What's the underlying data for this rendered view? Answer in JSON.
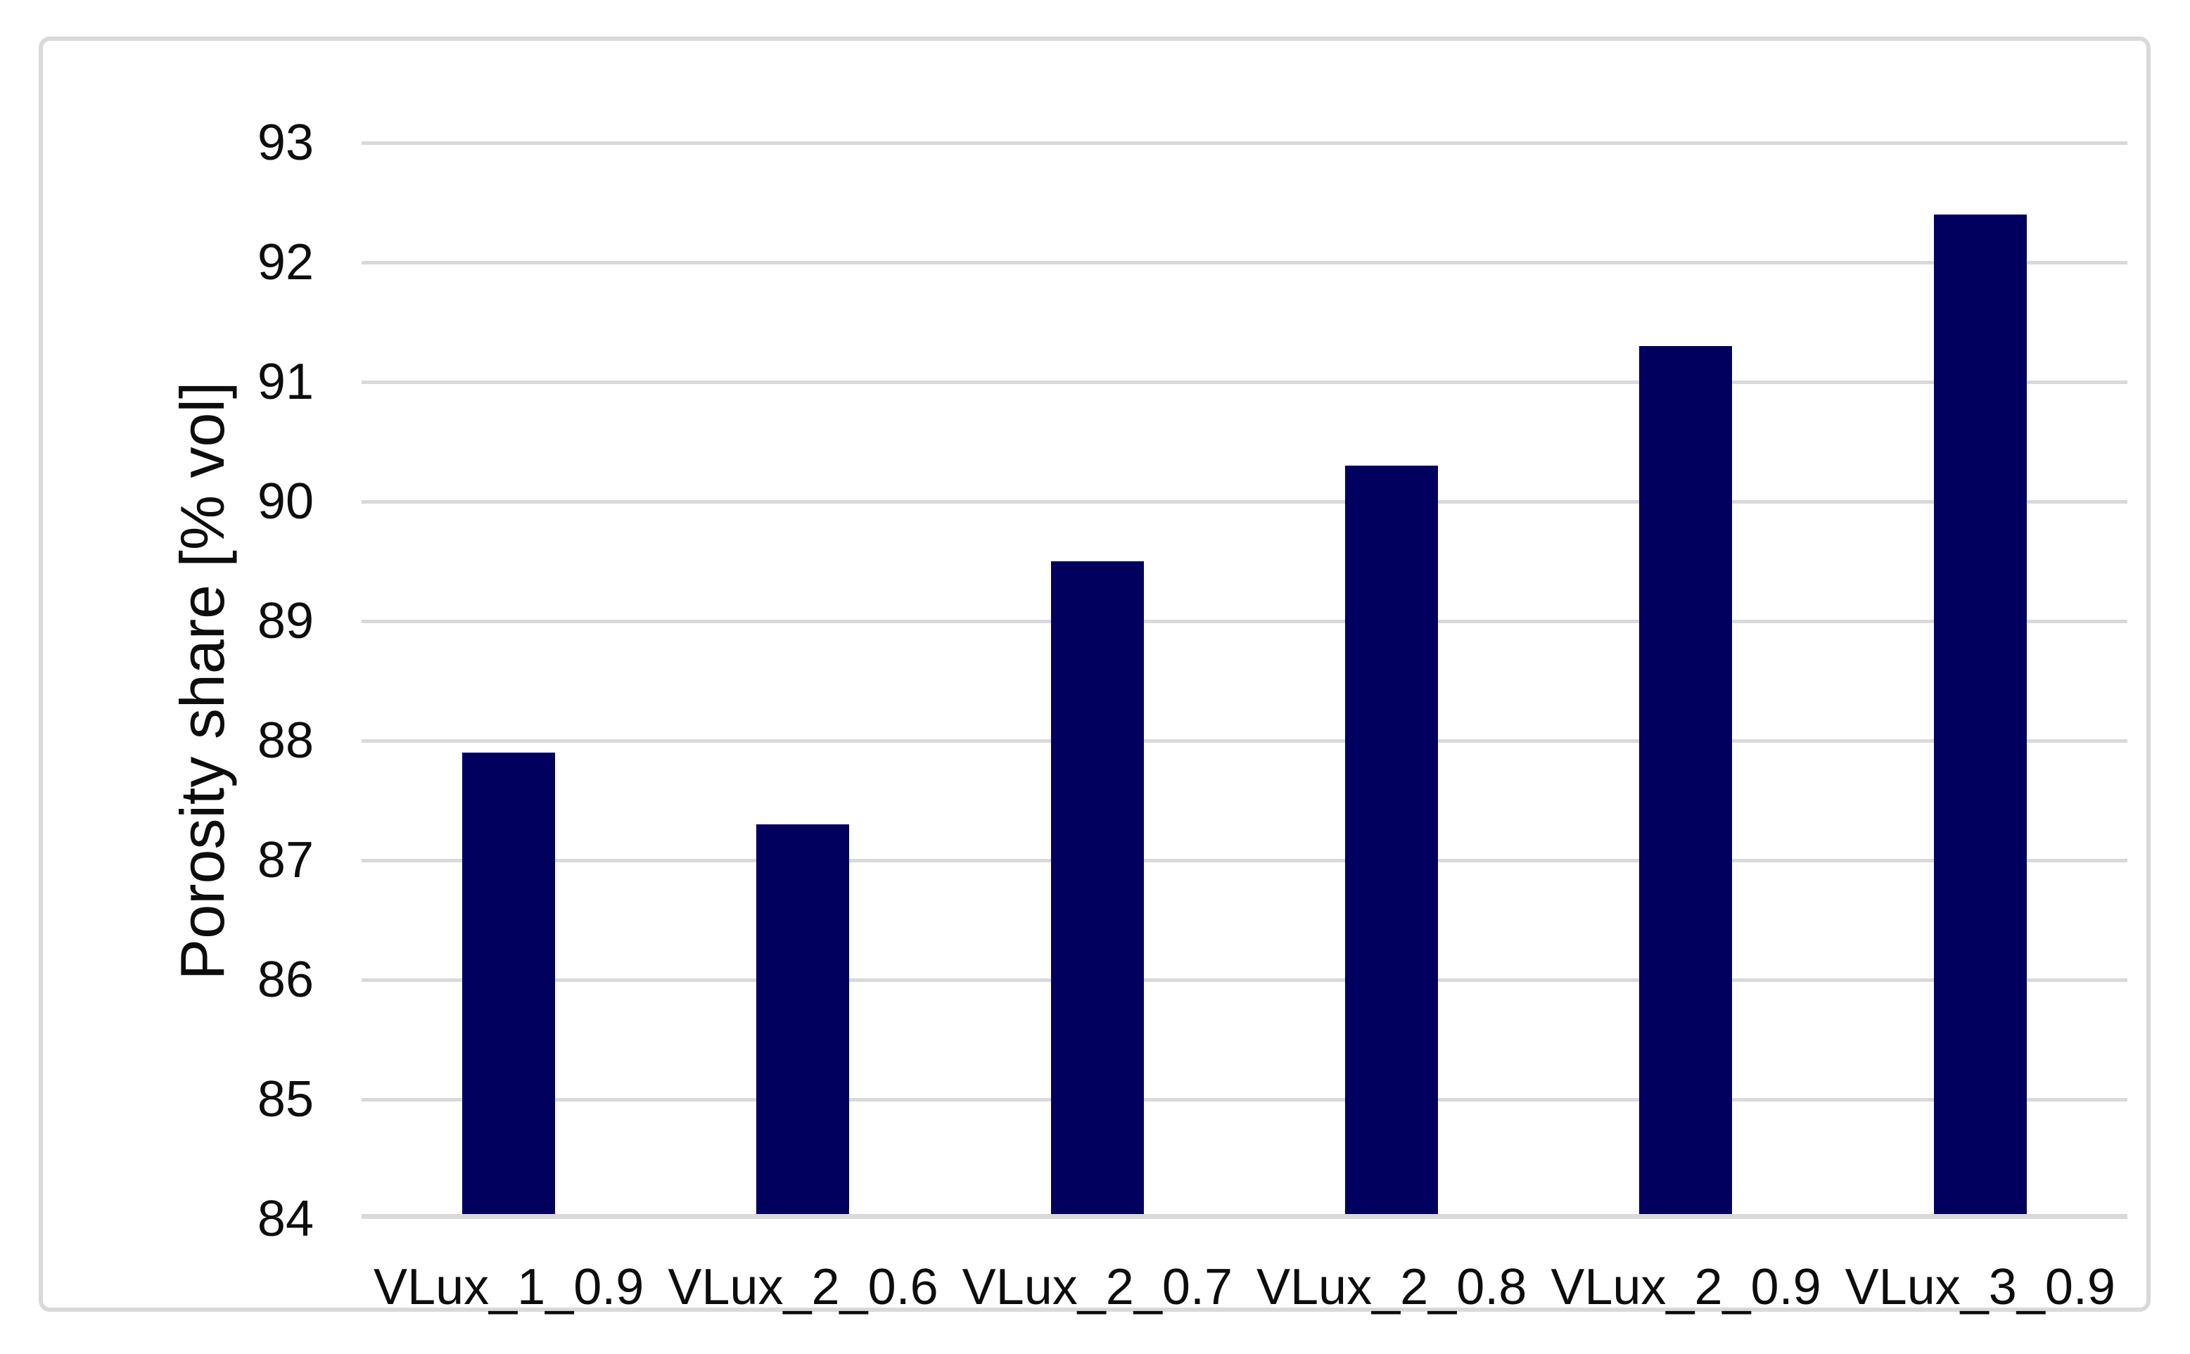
{
  "chart_data": {
    "type": "bar",
    "title": "",
    "xlabel": "",
    "ylabel": "Porosity share [% vol]",
    "categories": [
      "VLux_1_0.9",
      "VLux_2_0.6",
      "VLux_2_0.7",
      "VLux_2_0.8",
      "VLux_2_0.9",
      "VLux_3_0.9"
    ],
    "values": [
      87.9,
      87.3,
      89.5,
      90.3,
      91.3,
      92.4
    ],
    "ylim": [
      84,
      93
    ],
    "ytick_step": 1,
    "yticks": [
      93,
      92,
      91,
      90,
      89,
      88,
      87,
      86,
      85,
      84
    ],
    "grid": "horizontal-only",
    "legend": "none",
    "series_name": ""
  },
  "colors": {
    "bar": "#01005f",
    "gridline": "#d9d9d9",
    "frame_border": "#d9d9d9",
    "text": "#0d0d0d",
    "background": "#ffffff"
  }
}
